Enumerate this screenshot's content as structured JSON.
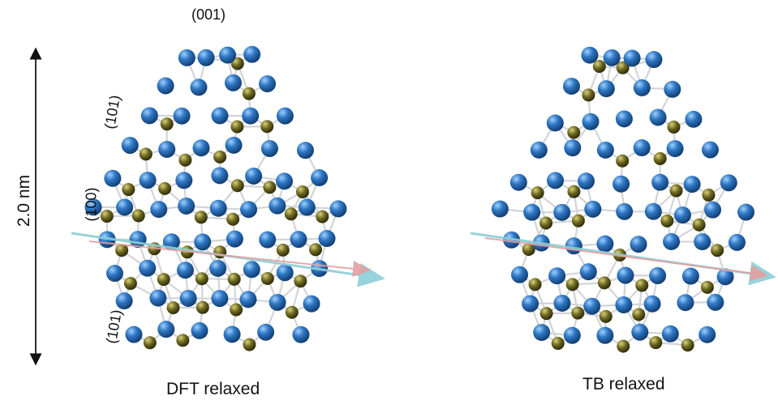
{
  "labels": {
    "facet_top": "(001)",
    "facet_upper_side": "(101)",
    "facet_middle_side": "(100)",
    "facet_lower_side": "(101)",
    "scale_bar": "2.0 nm",
    "left_structure": "DFT relaxed",
    "right_structure": "TB relaxed"
  },
  "colors": {
    "large_atom": "#2f77c4",
    "small_atom": "#6f6a22",
    "bond": "#d2d4d8",
    "axis_cyan": "#8ccfd6",
    "axis_pink": "#e4a0a0",
    "text": "#111111"
  }
}
